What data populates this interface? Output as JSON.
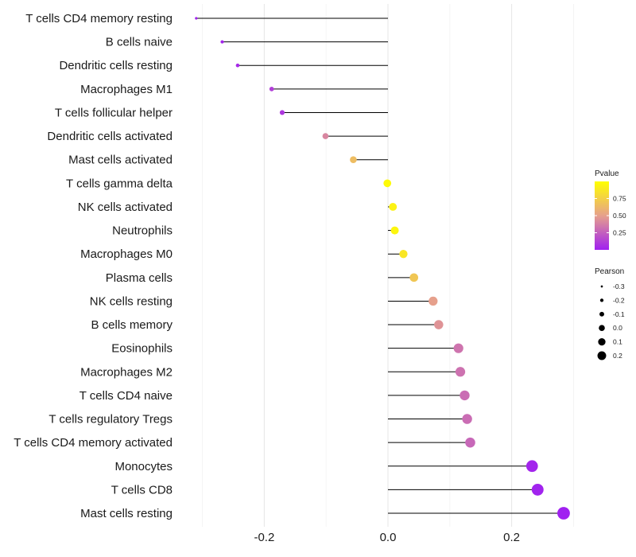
{
  "chart_data": {
    "type": "lollipop",
    "title": "",
    "xlabel": "",
    "ylabel": "",
    "xlim": [
      -0.3,
      0.3
    ],
    "x_ticks": [
      -0.2,
      0.0,
      0.2
    ],
    "x_tick_labels": [
      "-0.2",
      "0.0",
      "0.2"
    ],
    "categories": [
      "T cells CD4 memory resting",
      "B cells naive",
      "Dendritic cells resting",
      "Macrophages M1",
      "T cells follicular helper",
      "Dendritic cells activated",
      "Mast cells activated",
      "T cells gamma delta",
      "NK cells activated",
      "Neutrophils",
      "Macrophages M0",
      "Plasma cells",
      "NK cells resting",
      "B cells memory",
      "Eosinophils",
      "Macrophages M2",
      "T cells CD4 naive",
      "T cells regulatory  Tregs ",
      "T cells CD4 memory activated",
      "Monocytes",
      "T cells CD8",
      "Mast cells resting"
    ],
    "pearson": [
      -0.31,
      -0.268,
      -0.243,
      -0.188,
      -0.171,
      -0.101,
      -0.056,
      -0.001,
      0.008,
      0.011,
      0.025,
      0.042,
      0.073,
      0.082,
      0.114,
      0.117,
      0.124,
      0.128,
      0.133,
      0.233,
      0.242,
      0.284
    ],
    "pvalue": [
      0.01,
      0.02,
      0.04,
      0.12,
      0.09,
      0.4,
      0.65,
      0.98,
      0.93,
      0.95,
      0.87,
      0.7,
      0.5,
      0.45,
      0.33,
      0.32,
      0.3,
      0.3,
      0.28,
      0.02,
      0.01,
      0.0
    ],
    "color_legend": {
      "title": "Pvalue",
      "ticks": [
        0.25,
        0.5,
        0.75
      ],
      "tick_labels": [
        "0.25",
        "0.50",
        "0.75"
      ],
      "range": [
        0.0,
        1.0
      ],
      "low_color": "#a020f0",
      "mid_color": "#e6a08c",
      "high_color": "#ffff00"
    },
    "size_legend": {
      "title": "Pearson",
      "values": [
        -0.3,
        -0.2,
        -0.1,
        0.0,
        0.1,
        0.2
      ],
      "labels": [
        "-0.3",
        "-0.2",
        "-0.1",
        "0.0",
        "0.1",
        "0.2"
      ]
    },
    "grid": true,
    "legend_position": "right"
  }
}
